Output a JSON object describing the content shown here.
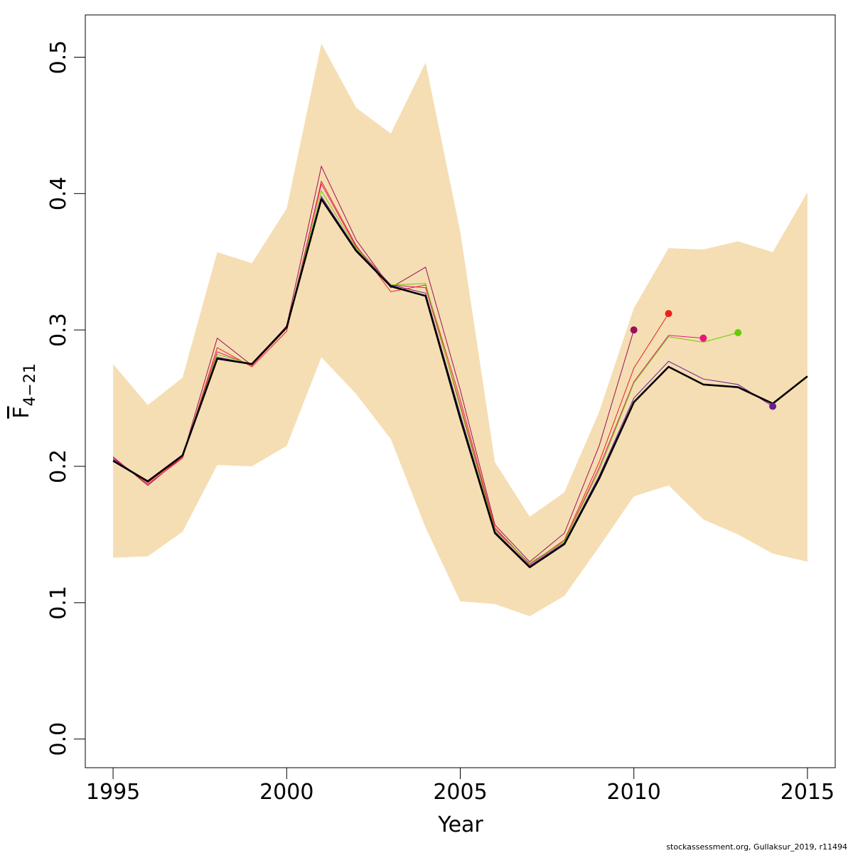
{
  "chart_data": {
    "type": "line",
    "xlabel": "Year",
    "ylabel": {
      "main": "F",
      "subscript": "4−21"
    },
    "xlim": [
      1994.2,
      2015.8
    ],
    "ylim": [
      -0.021,
      0.531
    ],
    "x_ticks": [
      1995,
      2000,
      2005,
      2010,
      2015
    ],
    "y_ticks": [
      0.0,
      0.1,
      0.2,
      0.3,
      0.4,
      0.5
    ],
    "y_tick_labels": [
      "0.0",
      "0.1",
      "0.2",
      "0.3",
      "0.4",
      "0.5"
    ],
    "colors": {
      "band": "#f5deb3",
      "main": "#000000"
    },
    "confidence_band": {
      "x": [
        1995,
        1996,
        1997,
        1998,
        1999,
        2000,
        2001,
        2002,
        2003,
        2004,
        2005,
        2006,
        2007,
        2008,
        2009,
        2010,
        2011,
        2012,
        2013,
        2014,
        2015
      ],
      "lower": [
        0.133,
        0.134,
        0.152,
        0.201,
        0.2,
        0.215,
        0.28,
        0.253,
        0.22,
        0.155,
        0.101,
        0.099,
        0.09,
        0.105,
        0.141,
        0.178,
        0.186,
        0.161,
        0.15,
        0.136,
        0.13
      ],
      "upper": [
        0.275,
        0.245,
        0.265,
        0.357,
        0.349,
        0.389,
        0.51,
        0.463,
        0.444,
        0.496,
        0.372,
        0.203,
        0.163,
        0.181,
        0.24,
        0.316,
        0.36,
        0.359,
        0.365,
        0.357,
        0.401
      ]
    },
    "main_series": {
      "x": [
        1995,
        1996,
        1997,
        1998,
        1999,
        2000,
        2001,
        2002,
        2003,
        2004,
        2005,
        2006,
        2007,
        2008,
        2009,
        2010,
        2011,
        2012,
        2013,
        2014,
        2015
      ],
      "y": [
        0.204,
        0.189,
        0.208,
        0.279,
        0.275,
        0.302,
        0.396,
        0.358,
        0.332,
        0.325,
        0.235,
        0.151,
        0.126,
        0.143,
        0.191,
        0.247,
        0.273,
        0.26,
        0.258,
        0.246,
        0.266
      ]
    },
    "retro_series": [
      {
        "color": "#9b0f5a",
        "x": [
          1995,
          1996,
          1997,
          1998,
          1999,
          2000,
          2001,
          2002,
          2003,
          2004,
          2005,
          2006,
          2007,
          2008,
          2009,
          2010
        ],
        "y": [
          0.207,
          0.186,
          0.207,
          0.294,
          0.274,
          0.303,
          0.42,
          0.366,
          0.331,
          0.346,
          0.256,
          0.157,
          0.13,
          0.151,
          0.215,
          0.3
        ]
      },
      {
        "color": "#e8211a",
        "x": [
          1995,
          1996,
          1997,
          1998,
          1999,
          2000,
          2001,
          2002,
          2003,
          2004,
          2005,
          2006,
          2007,
          2008,
          2009,
          2010,
          2011
        ],
        "y": [
          0.206,
          0.187,
          0.206,
          0.287,
          0.273,
          0.299,
          0.409,
          0.362,
          0.328,
          0.333,
          0.249,
          0.155,
          0.128,
          0.146,
          0.203,
          0.272,
          0.312
        ]
      },
      {
        "color": "#e8177a",
        "x": [
          1995,
          1996,
          1997,
          1998,
          1999,
          2000,
          2001,
          2002,
          2003,
          2004,
          2005,
          2006,
          2007,
          2008,
          2009,
          2010,
          2011,
          2012
        ],
        "y": [
          0.206,
          0.188,
          0.207,
          0.284,
          0.274,
          0.301,
          0.407,
          0.361,
          0.333,
          0.331,
          0.245,
          0.154,
          0.128,
          0.145,
          0.199,
          0.262,
          0.296,
          0.294
        ]
      },
      {
        "color": "#66cc00",
        "x": [
          1995,
          1996,
          1997,
          1998,
          1999,
          2000,
          2001,
          2002,
          2003,
          2004,
          2005,
          2006,
          2007,
          2008,
          2009,
          2010,
          2011,
          2012,
          2013
        ],
        "y": [
          0.205,
          0.189,
          0.208,
          0.282,
          0.275,
          0.302,
          0.402,
          0.36,
          0.333,
          0.334,
          0.243,
          0.153,
          0.129,
          0.145,
          0.197,
          0.261,
          0.295,
          0.291,
          0.298
        ]
      },
      {
        "color": "#6a1b9a",
        "x": [
          1995,
          1996,
          1997,
          1998,
          1999,
          2000,
          2001,
          2002,
          2003,
          2004,
          2005,
          2006,
          2007,
          2008,
          2009,
          2010,
          2011,
          2012,
          2013,
          2014
        ],
        "y": [
          0.205,
          0.189,
          0.208,
          0.28,
          0.275,
          0.302,
          0.398,
          0.359,
          0.333,
          0.327,
          0.238,
          0.152,
          0.127,
          0.144,
          0.193,
          0.25,
          0.277,
          0.264,
          0.26,
          0.244
        ]
      }
    ]
  },
  "credit": "stockassessment.org, Gullaksur_2019, r11494"
}
